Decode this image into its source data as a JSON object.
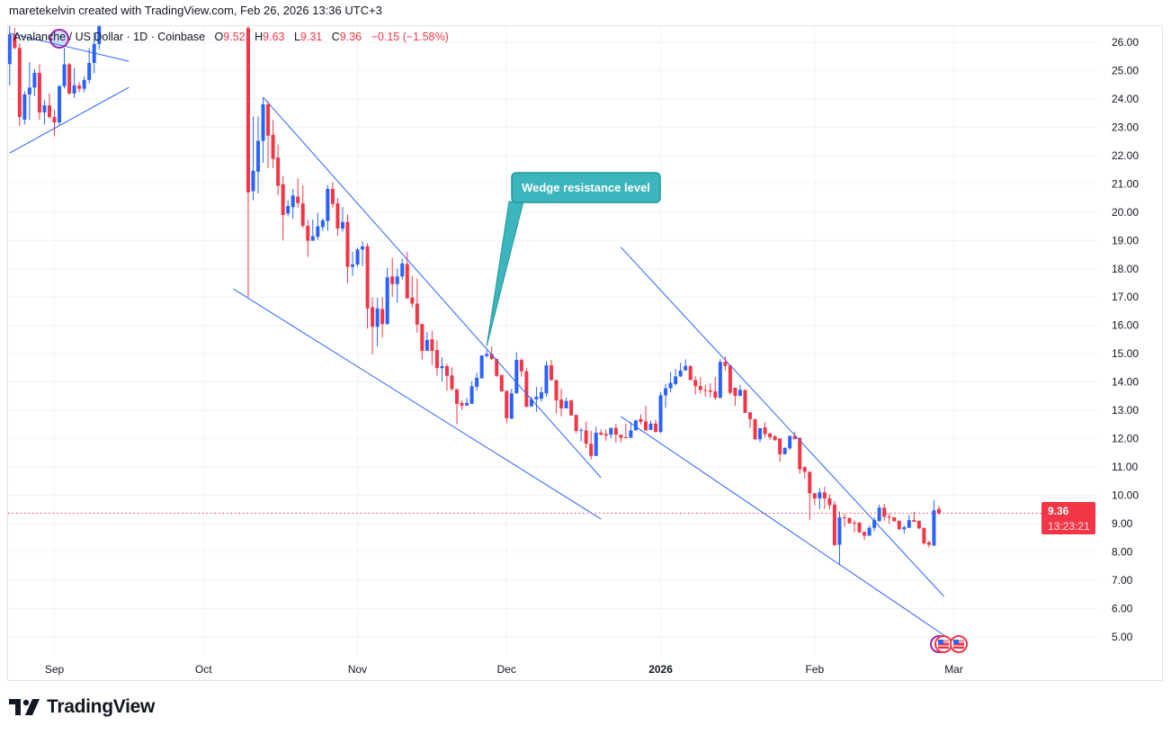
{
  "header": {
    "credit": "maretekelvin created with TradingView.com, Feb 26, 2026 13:36 UTC+3"
  },
  "legend": {
    "symbol": "Avalanche / US Dollar · 1D · Coinbase",
    "open_label": "O",
    "open": "9.52",
    "high_label": "H",
    "high": "9.63",
    "low_label": "L",
    "low": "9.31",
    "close_label": "C",
    "close": "9.36",
    "change": "−0.15 (−1.58%)"
  },
  "price_label": {
    "price": "9.36",
    "countdown": "13:23:21"
  },
  "logo": {
    "text": "TradingView"
  },
  "colors": {
    "up": "#2962ff",
    "down": "#f23645",
    "drawing": "#2962ff",
    "callout_fill": "#3cb6bc",
    "callout_border": "#1f979d",
    "grid": "#f0f3fa"
  },
  "chart_data": {
    "type": "candlestick",
    "title": "Avalanche / US Dollar · 1D · Coinbase",
    "xlabel": "",
    "ylabel": "",
    "ylim": [
      4.4,
      26.6
    ],
    "y_ticks": [
      "5.00",
      "6.00",
      "7.00",
      "8.00",
      "9.00",
      "10.00",
      "11.00",
      "12.00",
      "13.00",
      "14.00",
      "15.00",
      "16.00",
      "17.00",
      "18.00",
      "19.00",
      "20.00",
      "21.00",
      "22.00",
      "23.00",
      "24.00",
      "25.00",
      "26.00"
    ],
    "x_ticks": [
      {
        "label": "Sep",
        "date": "2025-09-01",
        "bold": false
      },
      {
        "label": "Oct",
        "date": "2025-10-01",
        "bold": false
      },
      {
        "label": "Nov",
        "date": "2025-11-01",
        "bold": false
      },
      {
        "label": "Dec",
        "date": "2025-12-01",
        "bold": false
      },
      {
        "label": "2026",
        "date": "2026-01-01",
        "bold": true
      },
      {
        "label": "Feb",
        "date": "2026-02-01",
        "bold": false
      },
      {
        "label": "Mar",
        "date": "2026-03-01",
        "bold": false
      }
    ],
    "last_price": 9.36,
    "candle_fields": [
      "open",
      "high",
      "low",
      "close"
    ],
    "segments": [
      {
        "start": "2025-08-23",
        "ohlc": [
          [
            25.23,
            26.65,
            24.48,
            26.28
          ],
          [
            26.28,
            26.5,
            25.75,
            25.8
          ],
          [
            25.8,
            25.96,
            23.05,
            23.36
          ],
          [
            23.27,
            24.27,
            23.1,
            24.16
          ],
          [
            24.16,
            25.29,
            23.26,
            24.4
          ],
          [
            24.4,
            25.06,
            24.1,
            24.92
          ],
          [
            24.92,
            25.22,
            23.26,
            23.52
          ],
          [
            23.52,
            23.95,
            23.1,
            23.77
          ],
          [
            23.77,
            24.2,
            23.3,
            23.36
          ],
          [
            23.36,
            23.63,
            22.68,
            23.17
          ],
          [
            23.17,
            24.48,
            23.05,
            24.45
          ],
          [
            24.45,
            25.8,
            24.37,
            25.22
          ],
          [
            25.22,
            25.27,
            24.15,
            24.19
          ],
          [
            24.19,
            25.1,
            24.05,
            24.48
          ],
          [
            24.47,
            24.6,
            24.23,
            24.36
          ],
          [
            24.36,
            24.8,
            24.23,
            24.67
          ],
          [
            24.67,
            25.8,
            24.55,
            25.27
          ],
          [
            25.27,
            26.33,
            24.9,
            25.94
          ],
          [
            25.94,
            26.86,
            25.75,
            26.65
          ]
        ]
      },
      {
        "start": "2025-10-10",
        "ohlc": [
          [
            26.5,
            26.9,
            17.0,
            20.7
          ],
          [
            20.74,
            23.38,
            20.42,
            21.46
          ],
          [
            21.43,
            23.38,
            20.66,
            22.52
          ],
          [
            22.52,
            24.05,
            21.75,
            23.81
          ],
          [
            23.81,
            23.91,
            21.56,
            22.7
          ],
          [
            22.73,
            23.26,
            21.56,
            21.88
          ],
          [
            21.93,
            22.39,
            20.61,
            20.93
          ],
          [
            20.98,
            21.27,
            19.0,
            19.9
          ],
          [
            19.95,
            20.42,
            19.85,
            20.22
          ],
          [
            20.18,
            20.82,
            19.76,
            20.59
          ],
          [
            20.55,
            21.19,
            20.16,
            20.32
          ],
          [
            20.31,
            20.95,
            19.44,
            19.52
          ],
          [
            19.52,
            19.73,
            18.42,
            18.99
          ],
          [
            18.99,
            19.74,
            18.99,
            19.15
          ],
          [
            19.13,
            19.97,
            19.02,
            19.5
          ],
          [
            19.47,
            19.78,
            19.34,
            19.71
          ],
          [
            19.69,
            20.96,
            19.34,
            20.82
          ],
          [
            20.82,
            21.06,
            20.16,
            20.29
          ],
          [
            20.31,
            20.5,
            19.15,
            19.42
          ],
          [
            19.42,
            20.18,
            19.31,
            19.65
          ],
          [
            19.65,
            19.92,
            17.5,
            18.07
          ],
          [
            18.07,
            18.6,
            17.75,
            18.15
          ],
          [
            18.15,
            18.75,
            18.07,
            18.68
          ],
          [
            18.68,
            18.97,
            18.09,
            18.79
          ],
          [
            18.79,
            18.91,
            15.89,
            16.6
          ],
          [
            16.64,
            16.99,
            14.97,
            15.95
          ],
          [
            15.95,
            16.97,
            15.26,
            16.6
          ],
          [
            16.58,
            17.0,
            15.58,
            16.05
          ],
          [
            16.05,
            18.03,
            16.02,
            17.7
          ],
          [
            17.73,
            18.38,
            17.01,
            17.46
          ],
          [
            17.46,
            18.01,
            16.8,
            17.73
          ],
          [
            17.73,
            18.35,
            17.62,
            18.19
          ],
          [
            18.17,
            18.6,
            16.95,
            16.95
          ],
          [
            16.98,
            17.75,
            16.64,
            16.77
          ],
          [
            16.77,
            17.66,
            15.74,
            16.03
          ],
          [
            16.05,
            16.05,
            14.8,
            15.1
          ],
          [
            15.1,
            15.76,
            15.1,
            15.49
          ],
          [
            15.51,
            15.82,
            14.6,
            15.1
          ],
          [
            15.13,
            15.47,
            14.22,
            14.49
          ],
          [
            14.49,
            14.88,
            14.01,
            14.56
          ],
          [
            14.56,
            14.65,
            13.69,
            14.22
          ],
          [
            14.23,
            14.52,
            13.69,
            13.75
          ],
          [
            13.75,
            13.75,
            12.51,
            13.23
          ],
          [
            13.26,
            13.35,
            13.01,
            13.17
          ],
          [
            13.17,
            13.44,
            13.17,
            13.26
          ],
          [
            13.23,
            14.02,
            13.23,
            13.85
          ],
          [
            13.83,
            14.33,
            13.69,
            14.15
          ],
          [
            14.13,
            14.94,
            14.13,
            14.94
          ],
          [
            14.92,
            15.12,
            14.86,
            14.99
          ],
          [
            14.99,
            15.26,
            14.78,
            14.81
          ],
          [
            14.81,
            14.81,
            14.18,
            14.22
          ],
          [
            14.25,
            14.25,
            13.65,
            13.67
          ],
          [
            13.69,
            13.69,
            12.54,
            12.72
          ],
          [
            12.7,
            13.76,
            12.7,
            13.6
          ],
          [
            13.6,
            15.05,
            13.6,
            14.78
          ],
          [
            14.78,
            14.84,
            14.18,
            14.38
          ],
          [
            14.38,
            14.5,
            13.12,
            13.12
          ],
          [
            13.14,
            13.48,
            13.14,
            13.39
          ],
          [
            13.39,
            13.83,
            12.95,
            13.48
          ],
          [
            13.41,
            13.83,
            13.3,
            13.64
          ],
          [
            13.6,
            14.73,
            13.49,
            14.59
          ],
          [
            14.59,
            14.78,
            14.04,
            14.07
          ],
          [
            14.07,
            14.07,
            12.88,
            13.35
          ],
          [
            13.38,
            13.76,
            12.79,
            13.07
          ],
          [
            13.07,
            13.44,
            13.07,
            13.33
          ],
          [
            13.35,
            13.38,
            12.8,
            12.82
          ],
          [
            12.84,
            12.84,
            12.19,
            12.27
          ],
          [
            12.29,
            12.37,
            11.9,
            12.31
          ],
          [
            12.29,
            12.61,
            11.66,
            11.82
          ],
          [
            11.82,
            12.27,
            11.26,
            11.39
          ],
          [
            11.39,
            12.42,
            11.39,
            12.21
          ],
          [
            12.21,
            12.33,
            12.11,
            12.14
          ],
          [
            12.17,
            12.33,
            11.92,
            12.11
          ],
          [
            12.14,
            12.38,
            12.01,
            12.38
          ],
          [
            12.38,
            12.53,
            11.85,
            12.14
          ],
          [
            12.14,
            12.14,
            11.87,
            12.03
          ],
          [
            12.05,
            12.53,
            12.03,
            12.03
          ],
          [
            12.03,
            12.59,
            12.03,
            12.29
          ],
          [
            12.29,
            12.67,
            12.29,
            12.64
          ],
          [
            12.69,
            12.86,
            12.5,
            12.59
          ],
          [
            12.61,
            13.16,
            12.29,
            12.29
          ],
          [
            12.31,
            12.63,
            12.31,
            12.53
          ],
          [
            12.53,
            12.67,
            12.21,
            12.24
          ],
          [
            12.24,
            13.64,
            12.19,
            13.53
          ],
          [
            13.53,
            13.93,
            13.09,
            13.78
          ],
          [
            13.78,
            14.36,
            13.64,
            13.97
          ],
          [
            13.93,
            14.46,
            13.88,
            14.2
          ],
          [
            14.2,
            14.68,
            14.18,
            14.41
          ],
          [
            14.41,
            14.8,
            14.41,
            14.57
          ],
          [
            14.57,
            14.57,
            14.07,
            14.07
          ],
          [
            14.07,
            14.2,
            13.56,
            13.85
          ],
          [
            13.86,
            14.17,
            13.6,
            13.72
          ],
          [
            13.72,
            13.9,
            13.48,
            13.69
          ],
          [
            13.7,
            13.96,
            13.46,
            13.65
          ],
          [
            13.67,
            14.18,
            13.37,
            13.44
          ],
          [
            13.44,
            14.8,
            13.44,
            14.71
          ],
          [
            14.71,
            14.91,
            14.41,
            14.57
          ],
          [
            14.59,
            14.59,
            13.56,
            13.62
          ],
          [
            13.8,
            13.8,
            13.16,
            13.51
          ],
          [
            13.51,
            13.9,
            13.51,
            13.72
          ],
          [
            13.72,
            13.72,
            12.91,
            12.91
          ],
          [
            12.93,
            12.93,
            12.38,
            12.69
          ],
          [
            12.69,
            12.69,
            11.95,
            11.98
          ],
          [
            11.98,
            12.37,
            11.87,
            12.37
          ],
          [
            12.4,
            12.58,
            12.03,
            12.16
          ],
          [
            12.19,
            12.19,
            11.95,
            12.05
          ],
          [
            12.08,
            12.13,
            11.92,
            11.95
          ],
          [
            12.01,
            12.01,
            11.18,
            11.45
          ],
          [
            11.45,
            11.68,
            11.45,
            11.68
          ],
          [
            11.66,
            12.1,
            11.6,
            12.1
          ],
          [
            12.1,
            12.24,
            11.98,
            11.98
          ],
          [
            12.03,
            12.03,
            10.76,
            10.92
          ],
          [
            10.99,
            11.02,
            10.6,
            10.83
          ],
          [
            10.83,
            10.83,
            9.12,
            10.07
          ],
          [
            10.07,
            10.07,
            9.65,
            9.89
          ],
          [
            9.89,
            10.26,
            9.51,
            10.1
          ],
          [
            10.1,
            10.3,
            9.51,
            9.89
          ],
          [
            9.89,
            10.04,
            9.51,
            9.65
          ],
          [
            9.67,
            9.8,
            8.22,
            8.24
          ],
          [
            8.25,
            9.43,
            7.55,
            9.22
          ],
          [
            9.22,
            9.35,
            8.88,
            9.19
          ],
          [
            9.2,
            9.2,
            8.99,
            9.01
          ],
          [
            9.03,
            9.12,
            8.69,
            9.01
          ],
          [
            9.03,
            9.06,
            8.67,
            8.69
          ],
          [
            8.71,
            8.71,
            8.41,
            8.57
          ],
          [
            8.57,
            8.93,
            8.57,
            8.85
          ],
          [
            8.85,
            9.22,
            8.73,
            9.12
          ],
          [
            9.08,
            9.67,
            9.08,
            9.56
          ],
          [
            9.56,
            9.7,
            9.1,
            9.24
          ],
          [
            9.24,
            9.38,
            8.99,
            9.22
          ],
          [
            9.22,
            9.24,
            9.06,
            9.08
          ],
          [
            9.1,
            9.1,
            8.77,
            8.8
          ],
          [
            8.8,
            8.93,
            8.64,
            8.87
          ],
          [
            8.85,
            9.31,
            8.85,
            9.12
          ],
          [
            9.12,
            9.41,
            9.06,
            9.06
          ],
          [
            9.1,
            9.1,
            8.8,
            8.83
          ],
          [
            8.85,
            8.85,
            8.25,
            8.3
          ],
          [
            8.34,
            8.4,
            8.16,
            8.25
          ],
          [
            8.22,
            9.83,
            8.22,
            9.47
          ],
          [
            9.52,
            9.63,
            9.31,
            9.36
          ]
        ]
      }
    ],
    "trendlines": [
      {
        "name": "sep-triangle-upper",
        "from": [
          "2025-08-23",
          26.32
        ],
        "to": [
          "2025-09-16",
          25.33
        ]
      },
      {
        "name": "sep-triangle-lower",
        "from": [
          "2025-08-23",
          22.09
        ],
        "to": [
          "2025-09-16",
          24.41
        ]
      },
      {
        "name": "wedge1-upper",
        "from": [
          "2025-10-13",
          24.06
        ],
        "to": [
          "2025-12-20",
          10.62
        ]
      },
      {
        "name": "wedge1-lower",
        "from": [
          "2025-10-07",
          17.29
        ],
        "to": [
          "2025-12-20",
          9.16
        ]
      },
      {
        "name": "wedge2-upper",
        "from": [
          "2025-12-24",
          18.76
        ],
        "to": [
          "2026-02-27",
          6.43
        ]
      },
      {
        "name": "wedge2-lower",
        "from": [
          "2025-12-24",
          12.78
        ],
        "to": [
          "2026-02-27",
          5.06
        ]
      }
    ],
    "annotations": [
      {
        "text": "Wedge resistance level",
        "target": [
          "2025-11-27",
          15.27
        ]
      }
    ]
  }
}
